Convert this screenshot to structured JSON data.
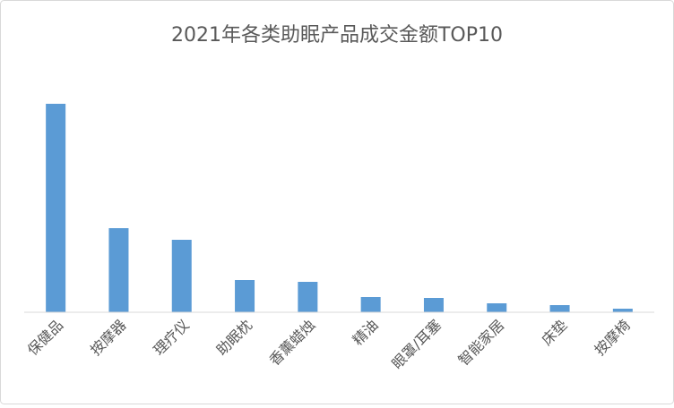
{
  "chart_data": {
    "type": "bar",
    "title": "2021年各类助眠产品成交金额TOP10",
    "categories": [
      "保健品",
      "按摩器",
      "理疗仪",
      "助眠枕",
      "香薰蜡烛",
      "精油",
      "眼罩/耳塞",
      "智能家居",
      "床垫",
      "按摩椅"
    ],
    "values": [
      233,
      94,
      81,
      36,
      34,
      17,
      16,
      10,
      8,
      4
    ],
    "color": "#5b9bd5"
  }
}
